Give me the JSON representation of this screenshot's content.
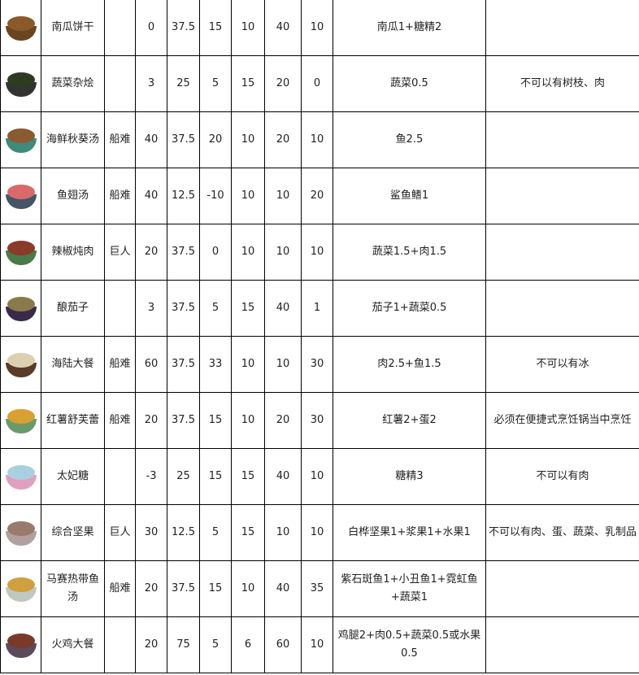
{
  "rows": [
    {
      "icon": "pumpkin-cookie-icon",
      "name": "南瓜饼干",
      "dlc": "",
      "v": [
        "0",
        "37.5",
        "15",
        "10",
        "40",
        "10"
      ],
      "ingredients": "南瓜1+糖精2",
      "note": "",
      "colors": [
        "#8a5a2b",
        "#6b4420"
      ]
    },
    {
      "icon": "stir-fry-icon",
      "name": "蔬菜杂烩",
      "dlc": "",
      "v": [
        "3",
        "25",
        "5",
        "15",
        "20",
        "0"
      ],
      "ingredients": "蔬菜0.5",
      "note": "不可以有树枝、肉",
      "colors": [
        "#2e3b22",
        "#333333"
      ]
    },
    {
      "icon": "gumbo-icon",
      "name": "海鲜秋葵汤",
      "dlc": "船难",
      "v": [
        "40",
        "37.5",
        "20",
        "10",
        "20",
        "10"
      ],
      "ingredients": "鱼2.5",
      "note": "",
      "colors": [
        "#8a5a30",
        "#3f8a7a"
      ]
    },
    {
      "icon": "shark-fin-soup-icon",
      "name": "鱼翅汤",
      "dlc": "船难",
      "v": [
        "40",
        "12.5",
        "-10",
        "10",
        "10",
        "20"
      ],
      "ingredients": "鲨鱼鳍1",
      "note": "",
      "colors": [
        "#d86a6a",
        "#445566"
      ]
    },
    {
      "icon": "pepper-stew-icon",
      "name": "辣椒炖肉",
      "dlc": "巨人",
      "v": [
        "20",
        "37.5",
        "0",
        "10",
        "10",
        "10"
      ],
      "ingredients": "蔬菜1.5+肉1.5",
      "note": "",
      "colors": [
        "#8a3a2a",
        "#4a7a4a"
      ]
    },
    {
      "icon": "stuffed-eggplant-icon",
      "name": "酿茄子",
      "dlc": "",
      "v": [
        "3",
        "37.5",
        "5",
        "15",
        "40",
        "1"
      ],
      "ingredients": "茄子1+蔬菜0.5",
      "note": "",
      "colors": [
        "#8a7a4a",
        "#3a2a4a"
      ]
    },
    {
      "icon": "surf-n-turf-icon",
      "name": "海陆大餐",
      "dlc": "船难",
      "v": [
        "60",
        "37.5",
        "33",
        "10",
        "10",
        "30"
      ],
      "ingredients": "肉2.5+鱼1.5",
      "note": "不可以有冰",
      "colors": [
        "#ddd0b0",
        "#5a3a2a"
      ]
    },
    {
      "icon": "sweet-potato-souffle-icon",
      "name": "红薯舒芙蕾",
      "dlc": "船难",
      "v": [
        "20",
        "37.5",
        "15",
        "10",
        "20",
        "30"
      ],
      "ingredients": "红薯2+蛋2",
      "note": "必须在便捷式烹饪锅当中烹饪",
      "colors": [
        "#d8a030",
        "#6a9a6a"
      ]
    },
    {
      "icon": "taffy-icon",
      "name": "太妃糖",
      "dlc": "",
      "v": [
        "-3",
        "25",
        "15",
        "15",
        "40",
        "10"
      ],
      "ingredients": "糖精3",
      "note": "不可以有肉",
      "colors": [
        "#aad0e0",
        "#e0a0c0"
      ]
    },
    {
      "icon": "trail-mix-icon",
      "name": "综合坚果",
      "dlc": "巨人",
      "v": [
        "30",
        "12.5",
        "5",
        "15",
        "10",
        "10"
      ],
      "ingredients": "白桦坚果1+浆果1+水果1",
      "note": "不可以有肉、蛋、蔬菜、乳制品",
      "colors": [
        "#9a7a6a",
        "#b0a0a0"
      ]
    },
    {
      "icon": "tropical-bouillabaisse-icon",
      "name": "马赛热带鱼汤",
      "dlc": "船难",
      "v": [
        "20",
        "37.5",
        "15",
        "10",
        "40",
        "35"
      ],
      "ingredients": "紫石斑鱼1+小丑鱼1+霓虹鱼+蔬菜1",
      "note": "",
      "colors": [
        "#d0a040",
        "#c0c8c0"
      ]
    },
    {
      "icon": "turkey-dinner-icon",
      "name": "火鸡大餐",
      "dlc": "",
      "v": [
        "20",
        "75",
        "5",
        "6",
        "60",
        "10"
      ],
      "ingredients": "鸡腿2+肉0.5+蔬菜0.5或水果0.5",
      "note": "",
      "colors": [
        "#7a3a2a",
        "#5a4a5a"
      ]
    }
  ]
}
